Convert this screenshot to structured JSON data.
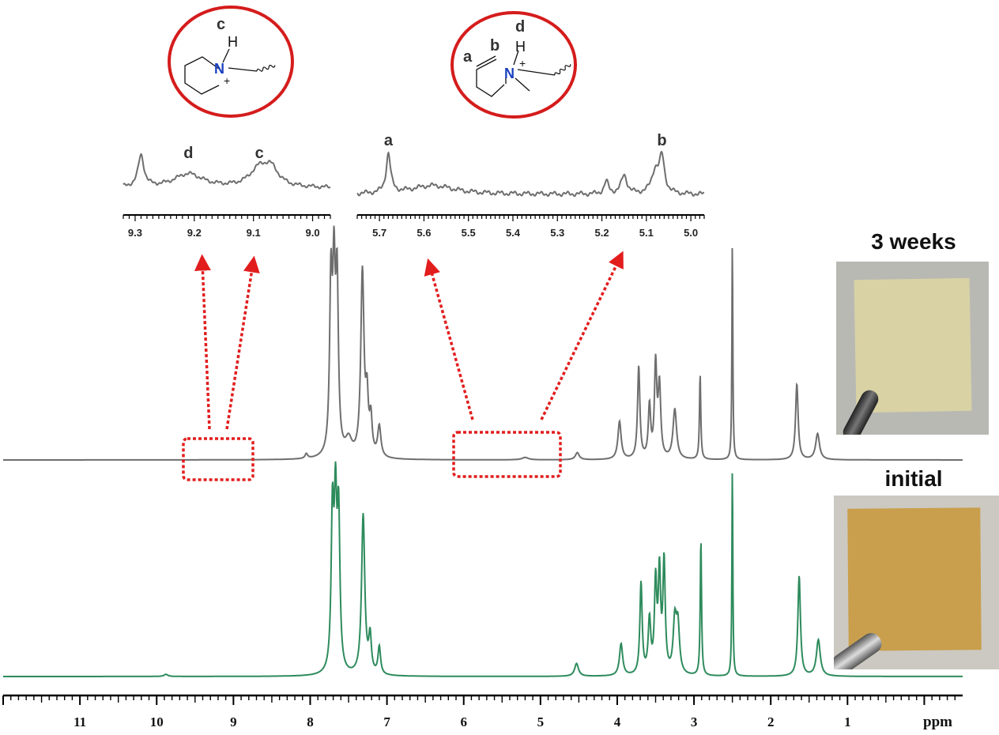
{
  "chart_data": {
    "type": "line",
    "title": "",
    "xlabel": "ppm",
    "xlim": [
      12.0,
      -0.5
    ],
    "x_ticks": [
      11,
      10,
      9,
      8,
      7,
      6,
      5,
      4,
      3,
      2,
      1
    ],
    "grid": false,
    "series": [
      {
        "name": "3 weeks",
        "color": "#6e6e6e",
        "peaks": [
          {
            "x": 8.05,
            "h": 0.02,
            "w": 0.02
          },
          {
            "x": 7.73,
            "h": 0.7,
            "w": 0.02
          },
          {
            "x": 7.69,
            "h": 0.7,
            "w": 0.02
          },
          {
            "x": 7.65,
            "h": 0.7,
            "w": 0.02
          },
          {
            "x": 7.5,
            "h": 0.07,
            "w": 0.05
          },
          {
            "x": 7.32,
            "h": 0.78,
            "w": 0.025
          },
          {
            "x": 7.26,
            "h": 0.22,
            "w": 0.02
          },
          {
            "x": 7.21,
            "h": 0.15,
            "w": 0.02
          },
          {
            "x": 7.1,
            "h": 0.13,
            "w": 0.025
          },
          {
            "x": 5.2,
            "h": 0.01,
            "w": 0.05
          },
          {
            "x": 4.52,
            "h": 0.03,
            "w": 0.03
          },
          {
            "x": 3.97,
            "h": 0.16,
            "w": 0.025
          },
          {
            "x": 3.72,
            "h": 0.39,
            "w": 0.018
          },
          {
            "x": 3.58,
            "h": 0.22,
            "w": 0.018
          },
          {
            "x": 3.5,
            "h": 0.39,
            "w": 0.018
          },
          {
            "x": 3.45,
            "h": 0.3,
            "w": 0.02
          },
          {
            "x": 3.25,
            "h": 0.21,
            "w": 0.028
          },
          {
            "x": 2.92,
            "h": 0.36,
            "w": 0.01
          },
          {
            "x": 2.5,
            "h": 0.93,
            "w": 0.007
          },
          {
            "x": 1.66,
            "h": 0.32,
            "w": 0.02
          },
          {
            "x": 1.39,
            "h": 0.11,
            "w": 0.03
          }
        ]
      },
      {
        "name": "initial",
        "color": "#2e8b5c",
        "peaks": [
          {
            "x": 9.88,
            "h": 0.01,
            "w": 0.03
          },
          {
            "x": 7.71,
            "h": 0.72,
            "w": 0.02
          },
          {
            "x": 7.67,
            "h": 0.72,
            "w": 0.02
          },
          {
            "x": 7.63,
            "h": 0.7,
            "w": 0.02
          },
          {
            "x": 7.31,
            "h": 0.75,
            "w": 0.025
          },
          {
            "x": 7.22,
            "h": 0.17,
            "w": 0.02
          },
          {
            "x": 7.1,
            "h": 0.13,
            "w": 0.02
          },
          {
            "x": 4.53,
            "h": 0.06,
            "w": 0.03
          },
          {
            "x": 3.95,
            "h": 0.15,
            "w": 0.025
          },
          {
            "x": 3.69,
            "h": 0.43,
            "w": 0.018
          },
          {
            "x": 3.58,
            "h": 0.25,
            "w": 0.02
          },
          {
            "x": 3.5,
            "h": 0.42,
            "w": 0.018
          },
          {
            "x": 3.45,
            "h": 0.46,
            "w": 0.018
          },
          {
            "x": 3.39,
            "h": 0.52,
            "w": 0.018
          },
          {
            "x": 3.25,
            "h": 0.24,
            "w": 0.025
          },
          {
            "x": 3.21,
            "h": 0.22,
            "w": 0.025
          },
          {
            "x": 2.91,
            "h": 0.64,
            "w": 0.01
          },
          {
            "x": 2.5,
            "h": 0.99,
            "w": 0.007
          },
          {
            "x": 1.63,
            "h": 0.47,
            "w": 0.02
          },
          {
            "x": 1.38,
            "h": 0.17,
            "w": 0.03
          }
        ]
      }
    ],
    "insets": [
      {
        "xlim": [
          9.32,
          8.97
        ],
        "ticks": [
          9.3,
          9.2,
          9.1,
          9.0
        ],
        "tick_labels": [
          "9.3",
          "9.2",
          "9.1",
          "9.0"
        ],
        "color": "#6e6e6e",
        "peaks": [
          {
            "x": 9.29,
            "h": 0.8,
            "w": 0.006
          },
          {
            "x": 9.21,
            "h": 0.35,
            "w": 0.03
          },
          {
            "x": 9.09,
            "h": 0.45,
            "w": 0.02
          },
          {
            "x": 9.07,
            "h": 0.4,
            "w": 0.015
          }
        ],
        "labels": [
          {
            "text": "d",
            "x": 9.21
          },
          {
            "text": "c",
            "x": 9.09
          }
        ]
      },
      {
        "xlim": [
          5.75,
          4.97
        ],
        "ticks": [
          5.7,
          5.6,
          5.5,
          5.4,
          5.3,
          5.2,
          5.1,
          5.0
        ],
        "tick_labels": [
          "5.7",
          "5.6",
          "5.5",
          "5.4",
          "5.3",
          "5.2",
          "5.1",
          "5.0"
        ],
        "color": "#6e6e6e",
        "peaks": [
          {
            "x": 5.68,
            "h": 0.8,
            "w": 0.006
          },
          {
            "x": 5.58,
            "h": 0.18,
            "w": 0.06
          },
          {
            "x": 5.19,
            "h": 0.25,
            "w": 0.006
          },
          {
            "x": 5.15,
            "h": 0.38,
            "w": 0.008
          },
          {
            "x": 5.08,
            "h": 0.45,
            "w": 0.01
          },
          {
            "x": 5.065,
            "h": 0.7,
            "w": 0.007
          }
        ],
        "labels": [
          {
            "text": "a",
            "x": 5.68
          },
          {
            "text": "b",
            "x": 5.065
          }
        ]
      }
    ]
  },
  "structures": [
    {
      "label": "c",
      "h_atom": "H",
      "n_atom": "N",
      "charge": "+"
    },
    {
      "label": "d",
      "h_atom": "H",
      "n_atom": "N",
      "charge": "+",
      "chain_labels": [
        "a",
        "b"
      ]
    }
  ],
  "photos": [
    {
      "label": "3 weeks",
      "film_color": "#d9d2a5"
    },
    {
      "label": "initial",
      "film_color": "#c99f4d"
    }
  ],
  "colors": {
    "highlight": "#e21d1d",
    "axis": "#000000"
  }
}
